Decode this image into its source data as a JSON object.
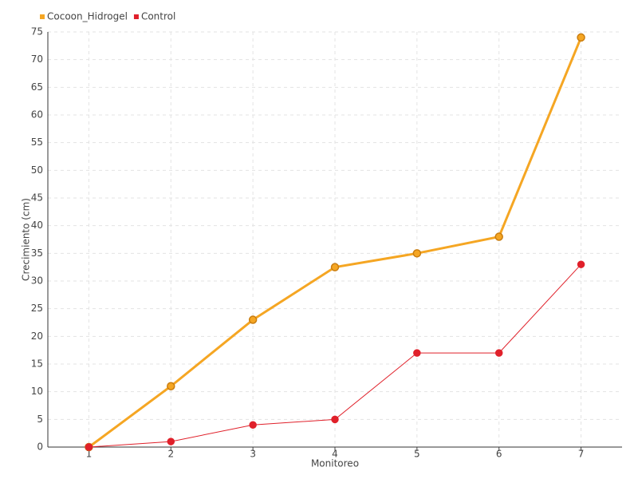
{
  "chart_data": {
    "type": "line",
    "x_label": "Monitoreo",
    "y_label": "Crecimiento (cm)",
    "categories": [
      "1",
      "2",
      "3",
      "4",
      "5",
      "6",
      "7"
    ],
    "series": [
      {
        "name": "Cocoon_Hidrogel",
        "color": "#f5a623",
        "values": [
          0,
          11,
          23,
          32.5,
          35,
          38,
          74
        ]
      },
      {
        "name": "Control",
        "color": "#e0202a",
        "values": [
          0,
          1,
          4,
          5,
          17,
          17,
          33
        ]
      }
    ],
    "ylim": [
      0,
      75
    ],
    "yticks": [
      0,
      5,
      10,
      15,
      20,
      25,
      30,
      35,
      40,
      45,
      50,
      55,
      60,
      65,
      70,
      75
    ],
    "grid": true,
    "legend": "top-left"
  }
}
